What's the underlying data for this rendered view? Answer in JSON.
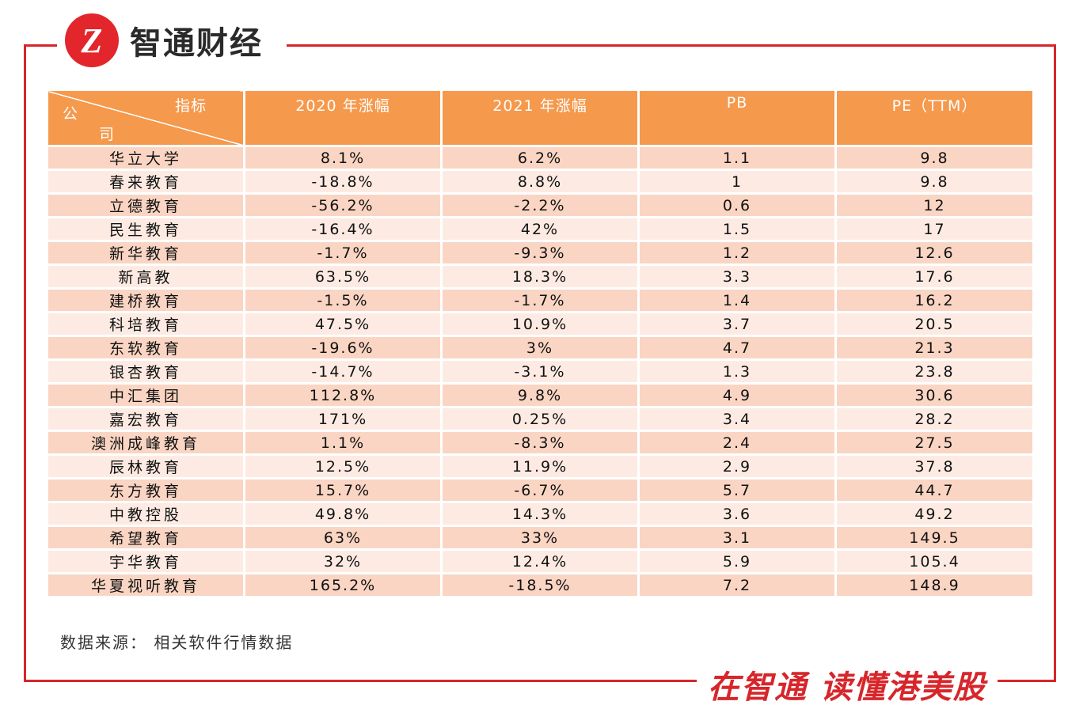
{
  "brand": {
    "logo_mark": "Z",
    "logo_text": "智通财经",
    "accent_color": "#d7262b",
    "slogan": "在智通  读懂港美股"
  },
  "table": {
    "header": {
      "diag_top": "指标",
      "diag_bottom_1": "公",
      "diag_bottom_2": "司",
      "columns": [
        "2020 年涨幅",
        "2021 年涨幅",
        "PB",
        "PE（TTM）"
      ]
    },
    "rows": [
      {
        "name": "华立大学",
        "c2020": "8.1%",
        "c2021": "6.2%",
        "pb": "1.1",
        "pe": "9.8"
      },
      {
        "name": "春来教育",
        "c2020": "-18.8%",
        "c2021": "8.8%",
        "pb": "1",
        "pe": "9.8"
      },
      {
        "name": "立德教育",
        "c2020": "-56.2%",
        "c2021": "-2.2%",
        "pb": "0.6",
        "pe": "12"
      },
      {
        "name": "民生教育",
        "c2020": "-16.4%",
        "c2021": "42%",
        "pb": "1.5",
        "pe": "17"
      },
      {
        "name": "新华教育",
        "c2020": "-1.7%",
        "c2021": "-9.3%",
        "pb": "1.2",
        "pe": "12.6"
      },
      {
        "name": "新高教",
        "c2020": "63.5%",
        "c2021": "18.3%",
        "pb": "3.3",
        "pe": "17.6"
      },
      {
        "name": "建桥教育",
        "c2020": "-1.5%",
        "c2021": "-1.7%",
        "pb": "1.4",
        "pe": "16.2"
      },
      {
        "name": "科培教育",
        "c2020": "47.5%",
        "c2021": "10.9%",
        "pb": "3.7",
        "pe": "20.5"
      },
      {
        "name": "东软教育",
        "c2020": "-19.6%",
        "c2021": "3%",
        "pb": "4.7",
        "pe": "21.3"
      },
      {
        "name": "银杏教育",
        "c2020": "-14.7%",
        "c2021": "-3.1%",
        "pb": "1.3",
        "pe": "23.8"
      },
      {
        "name": "中汇集团",
        "c2020": "112.8%",
        "c2021": "9.8%",
        "pb": "4.9",
        "pe": "30.6"
      },
      {
        "name": "嘉宏教育",
        "c2020": "171%",
        "c2021": "0.25%",
        "pb": "3.4",
        "pe": "28.2"
      },
      {
        "name": "澳洲成峰教育",
        "c2020": "1.1%",
        "c2021": "-8.3%",
        "pb": "2.4",
        "pe": "27.5"
      },
      {
        "name": "辰林教育",
        "c2020": "12.5%",
        "c2021": "11.9%",
        "pb": "2.9",
        "pe": "37.8"
      },
      {
        "name": "东方教育",
        "c2020": "15.7%",
        "c2021": "-6.7%",
        "pb": "5.7",
        "pe": "44.7"
      },
      {
        "name": "中教控股",
        "c2020": "49.8%",
        "c2021": "14.3%",
        "pb": "3.6",
        "pe": "49.2"
      },
      {
        "name": "希望教育",
        "c2020": "63%",
        "c2021": "33%",
        "pb": "3.1",
        "pe": "149.5"
      },
      {
        "name": "宇华教育",
        "c2020": "32%",
        "c2021": "12.4%",
        "pb": "5.9",
        "pe": "105.4"
      },
      {
        "name": "华夏视听教育",
        "c2020": "165.2%",
        "c2021": "-18.5%",
        "pb": "7.2",
        "pe": "148.9"
      }
    ]
  },
  "source_note": "数据来源：  相关软件行情数据"
}
